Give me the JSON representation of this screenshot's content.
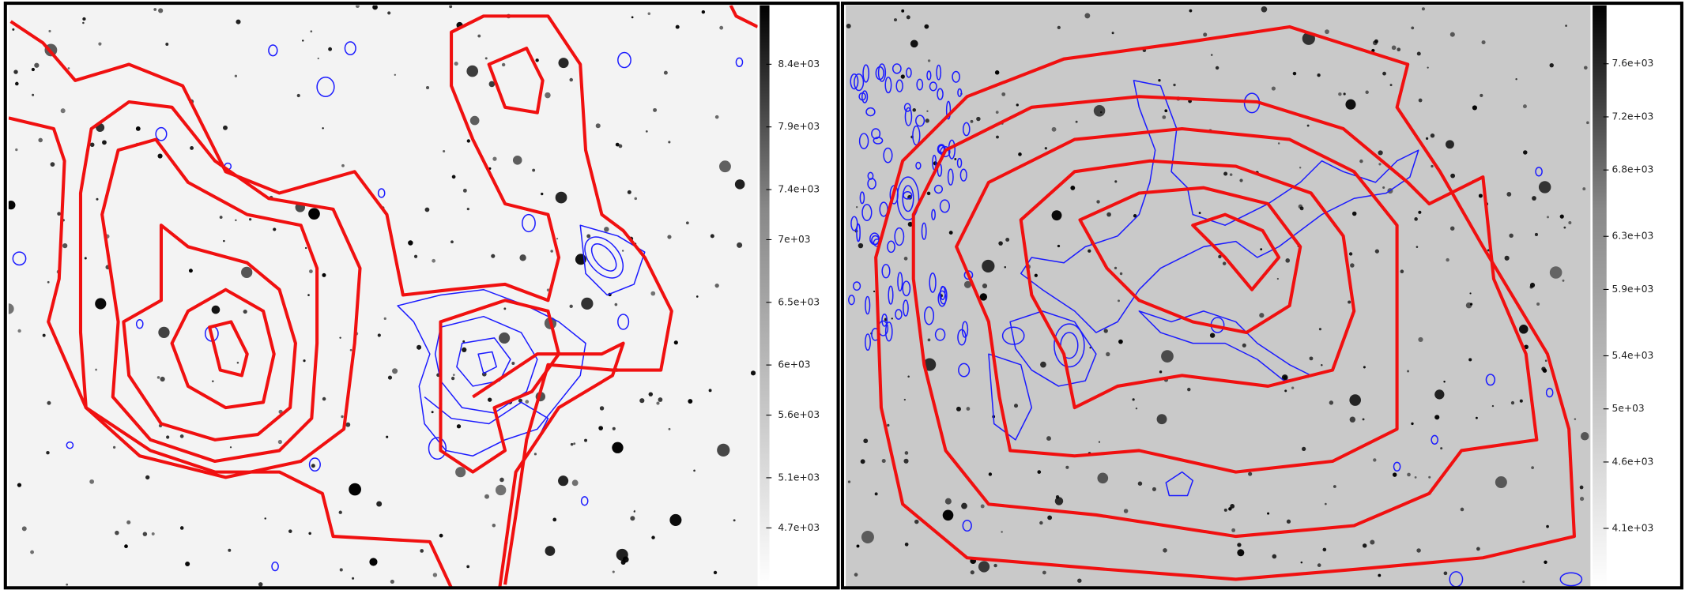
{
  "chart_data": [
    {
      "type": "image",
      "ylim": [
        4230,
        8870
      ],
      "yticks": [
        {
          "value": 8400,
          "label": "8.4e+03"
        },
        {
          "value": 7900,
          "label": "7.9e+03"
        },
        {
          "value": 7400,
          "label": "7.4e+03"
        },
        {
          "value": 7000,
          "label": "7e+03"
        },
        {
          "value": 6500,
          "label": "6.5e+03"
        },
        {
          "value": 6000,
          "label": "6e+03"
        },
        {
          "value": 5600,
          "label": "5.6e+03"
        },
        {
          "value": 5100,
          "label": "5.1e+03"
        },
        {
          "value": 4700,
          "label": "4.7e+03"
        }
      ]
    },
    {
      "type": "image",
      "ylim": [
        3660,
        8040
      ],
      "yticks": [
        {
          "value": 7600,
          "label": "7.6e+03"
        },
        {
          "value": 7200,
          "label": "7.2e+03"
        },
        {
          "value": 6800,
          "label": "6.8e+03"
        },
        {
          "value": 6300,
          "label": "6.3e+03"
        },
        {
          "value": 5900,
          "label": "5.9e+03"
        },
        {
          "value": 5400,
          "label": "5.4e+03"
        },
        {
          "value": 5000,
          "label": "5e+03"
        },
        {
          "value": 4600,
          "label": "4.6e+03"
        },
        {
          "value": 4100,
          "label": "4.1e+03"
        }
      ]
    }
  ]
}
